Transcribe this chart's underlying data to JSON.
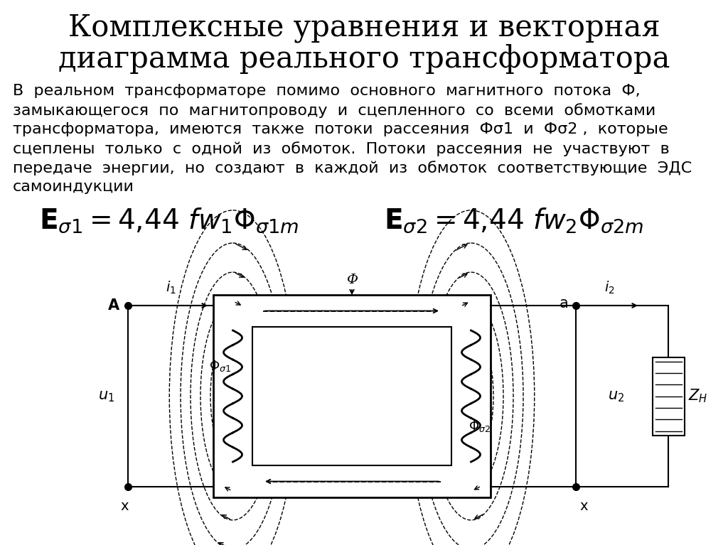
{
  "title_line1": "Комплексные уравнения и векторная",
  "title_line2": "диаграмма реального трансформатора",
  "title_fontsize": 30,
  "bg_color": "#ffffff",
  "text_color": "#000000",
  "body_lines": [
    "В  реальном  трансформаторе  помимо  основного  магнитного  потока  Ф,",
    "замыкающегося  по  магнитопроводу  и  сцепленного  со  всеми  обмотками",
    "трансформатора,  имеются  также  потоки  рассеяния  Фσ1  и  Фσ2 ,  которые",
    "сцеплены  только  с  одной  из  обмоток.  Потоки  рассеяния  не  участвуют  в",
    "передаче  энергии,  но  создают  в  каждой  из  обмоток  соответствующие  ЭДС",
    "самоиндукции"
  ],
  "body_fontsize": 16,
  "formula_fontsize": 28
}
